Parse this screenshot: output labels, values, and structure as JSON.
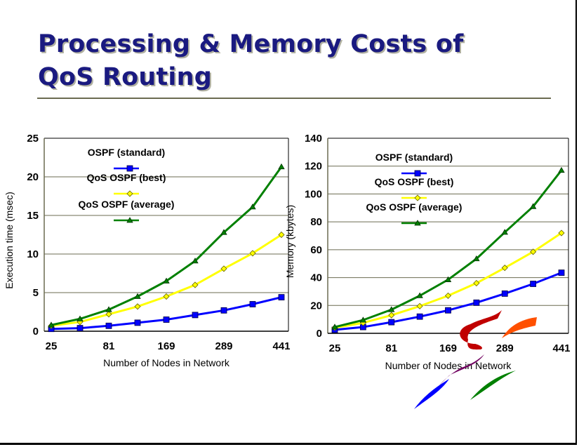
{
  "slide": {
    "title_line1": "Processing & Memory Costs of",
    "title_line2": "QoS Routing"
  },
  "colors": {
    "title": "#1a1a80",
    "grid": "#6b6b50",
    "ospf_standard": "#0000ff",
    "qos_best": "#ffff00",
    "qos_average": "#008000"
  },
  "chart_data": [
    {
      "type": "line",
      "title": "",
      "xlabel": "Number of Nodes in Network",
      "ylabel": "Execution time (msec)",
      "x": [
        25,
        49,
        81,
        121,
        169,
        225,
        289,
        361,
        441
      ],
      "xticks": [
        "25",
        "81",
        "169",
        "289",
        "441"
      ],
      "ylim": [
        0,
        25
      ],
      "yticks": [
        "0",
        "5",
        "10",
        "15",
        "20",
        "25"
      ],
      "grid": true,
      "legend": "top-left",
      "series": [
        {
          "name": "OSPF (standard)",
          "marker": "square",
          "values": [
            0.3,
            0.4,
            0.7,
            1.1,
            1.5,
            2.1,
            2.7,
            3.5,
            4.4
          ]
        },
        {
          "name": "QoS OSPF (best)",
          "marker": "diamond",
          "values": [
            0.7,
            1.2,
            2.2,
            3.2,
            4.5,
            6.0,
            8.1,
            10.1,
            12.5
          ]
        },
        {
          "name": "QoS OSPF (average)",
          "marker": "triangle",
          "values": [
            0.8,
            1.6,
            2.8,
            4.5,
            6.5,
            9.1,
            12.8,
            16.1,
            21.3
          ]
        }
      ]
    },
    {
      "type": "line",
      "title": "",
      "xlabel": "Number of Nodes in Network",
      "ylabel": "Memory (kbytes)",
      "x": [
        25,
        49,
        81,
        121,
        169,
        225,
        289,
        361,
        441
      ],
      "xticks": [
        "25",
        "81",
        "169",
        "289",
        "441"
      ],
      "ylim": [
        0,
        140
      ],
      "yticks": [
        "0",
        "20",
        "40",
        "60",
        "80",
        "100",
        "120",
        "140"
      ],
      "grid": true,
      "legend": "top-left",
      "series": [
        {
          "name": "OSPF (standard)",
          "marker": "square",
          "values": [
            2.5,
            4.5,
            8,
            12,
            16.5,
            22,
            28.5,
            35.5,
            43.5
          ]
        },
        {
          "name": "QoS OSPF (best)",
          "marker": "diamond",
          "values": [
            4,
            7.5,
            13,
            19.5,
            27,
            36,
            47,
            58.5,
            72
          ]
        },
        {
          "name": "QoS OSPF (average)",
          "marker": "triangle",
          "values": [
            4.5,
            9.5,
            17,
            27,
            38.5,
            53.5,
            72.5,
            91,
            117
          ]
        }
      ]
    }
  ]
}
